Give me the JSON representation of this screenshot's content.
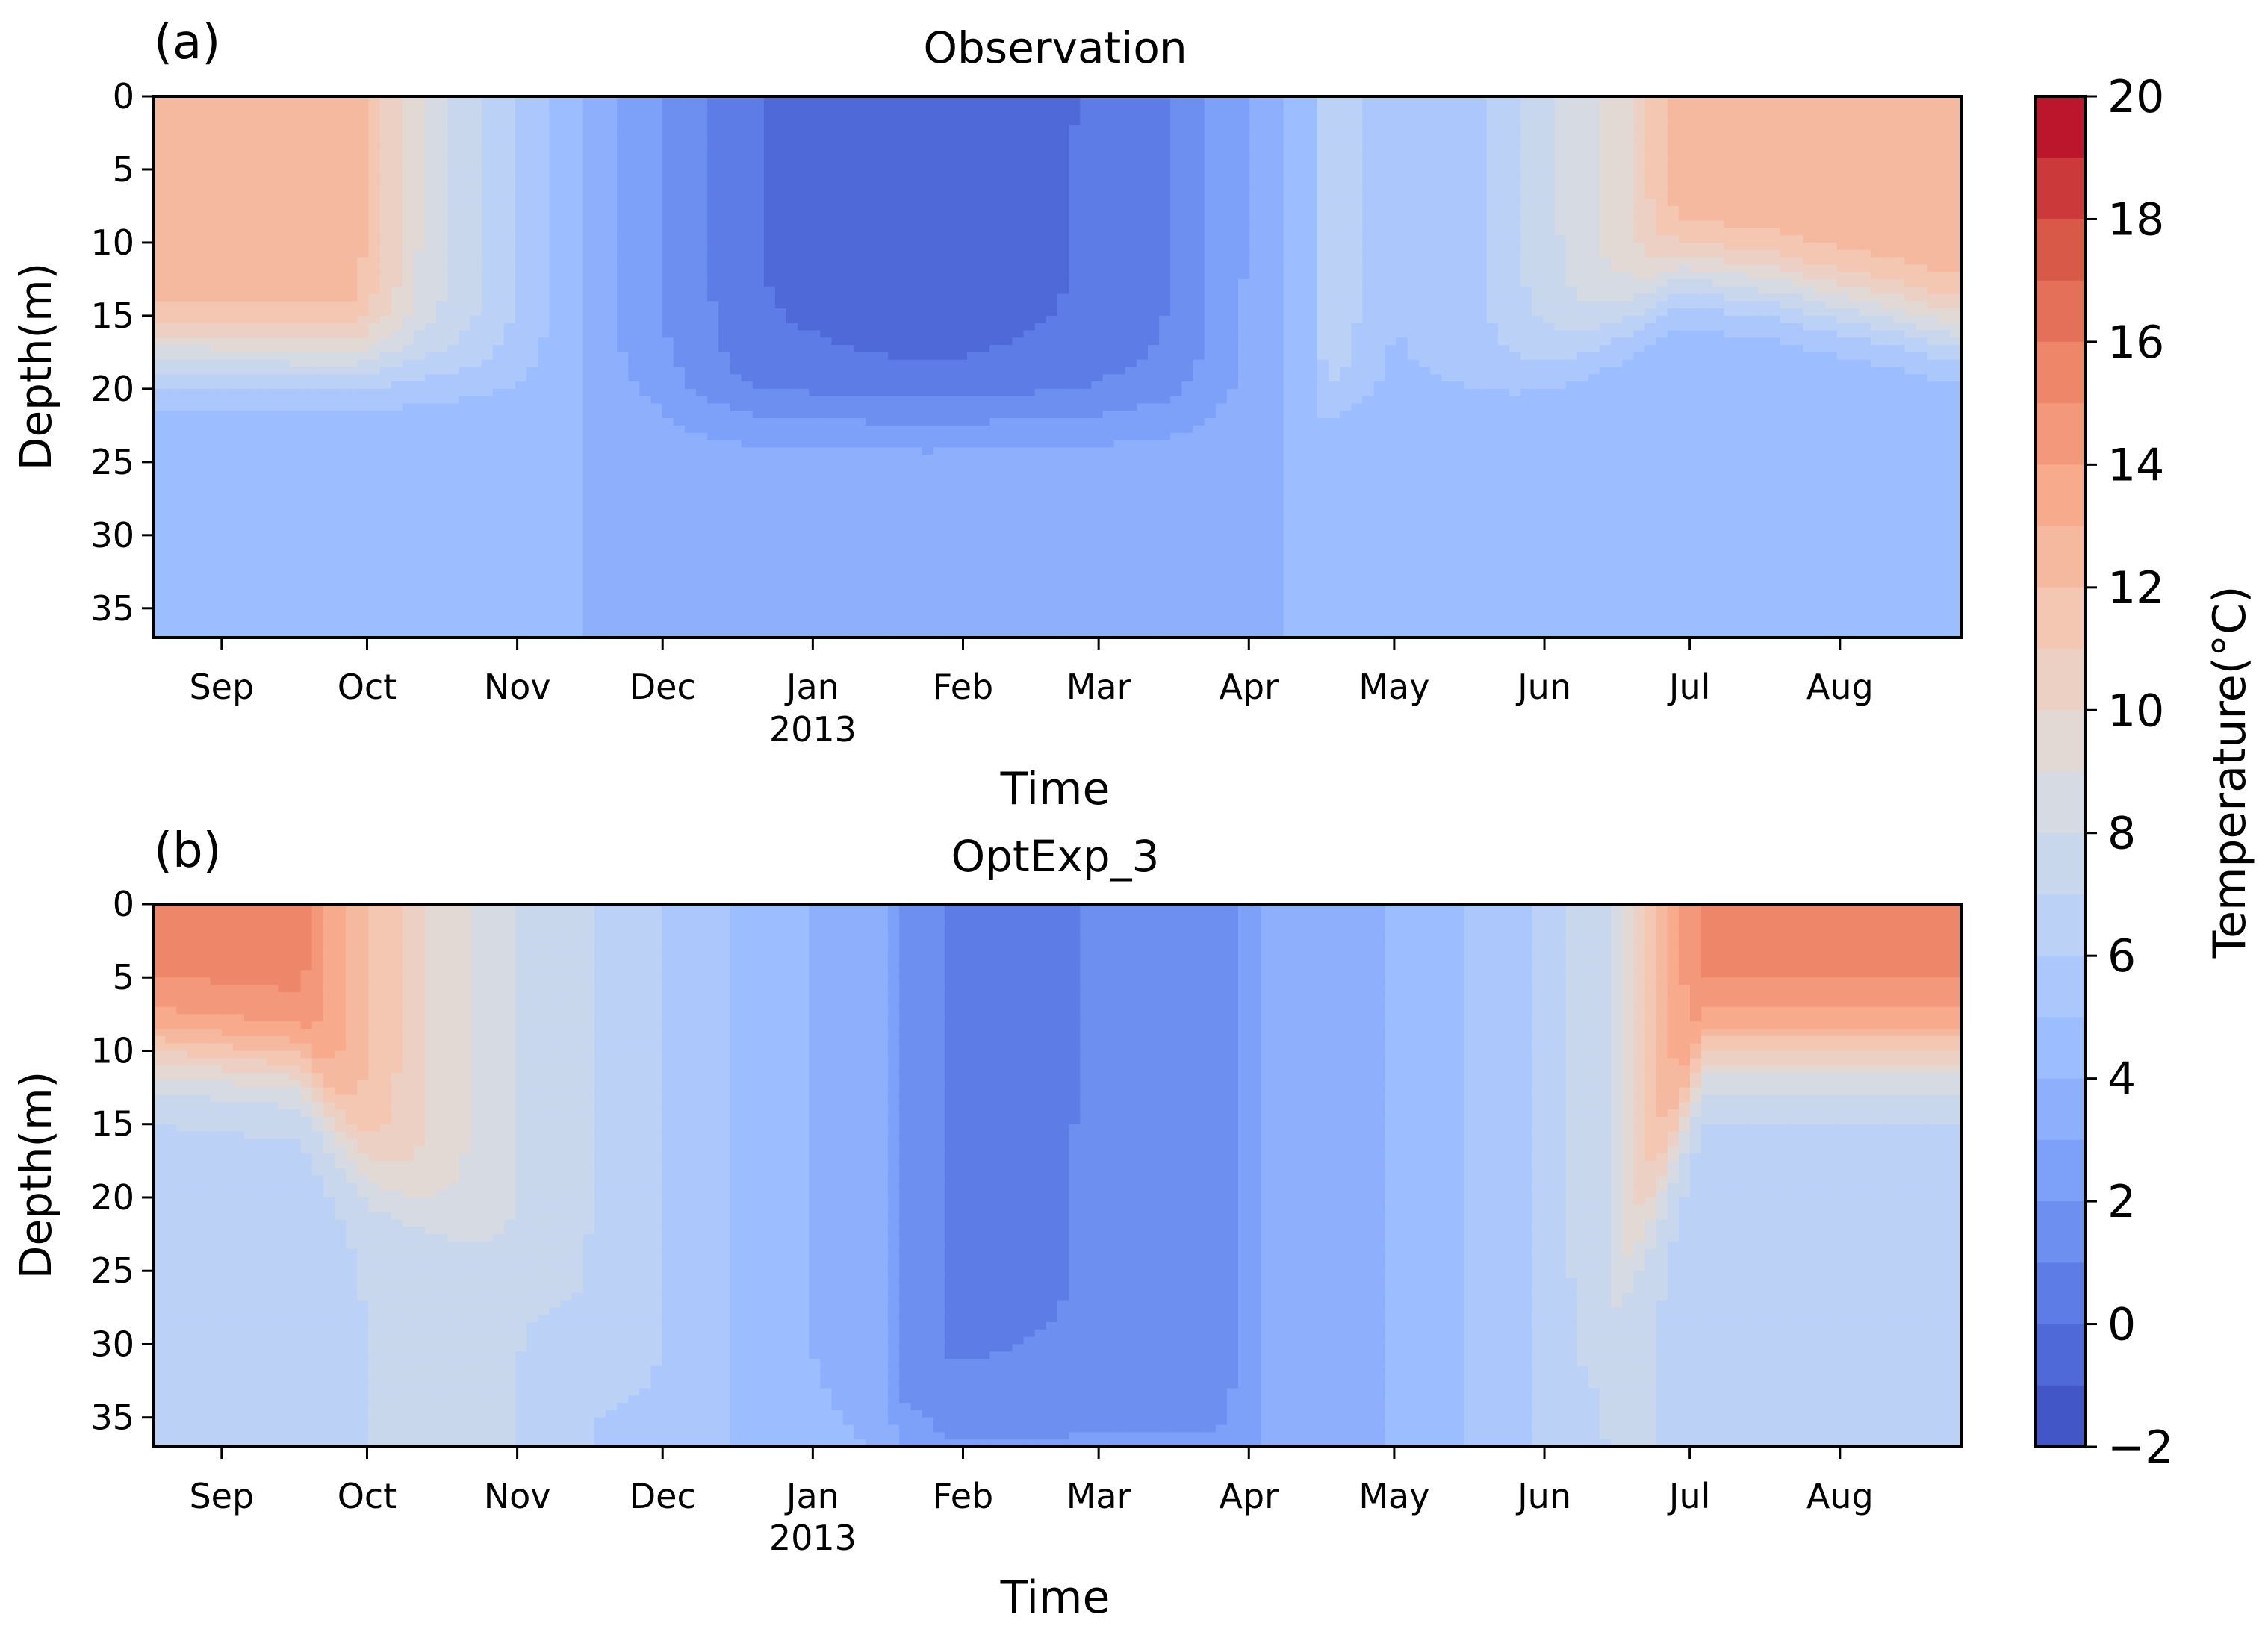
{
  "chart_data": [
    {
      "type": "heatmap",
      "panel_label": "(a)",
      "title": "Observation",
      "xlabel": "Time",
      "ylabel": "Depth(m)",
      "x_ticks": [
        "Sep",
        "Oct",
        "Nov",
        "Dec",
        "Jan",
        "Feb",
        "Mar",
        "Apr",
        "May",
        "Jun",
        "Jul",
        "Aug"
      ],
      "x_tick_day": [
        14,
        44,
        75,
        105,
        136,
        167,
        195,
        226,
        256,
        287,
        317,
        348
      ],
      "x_year_label": "2013",
      "x_year_under": "Jan",
      "xlim_days": [
        0,
        373
      ],
      "y_ticks": [
        0,
        5,
        10,
        15,
        20,
        25,
        30,
        35
      ],
      "ylim": [
        37,
        0
      ],
      "grid": false,
      "keyframes_day": [
        0,
        40,
        55,
        75,
        95,
        110,
        125,
        160,
        190,
        210,
        240,
        242,
        256,
        275,
        290,
        305,
        315,
        335,
        373
      ],
      "surface_temp_c": [
        13,
        13,
        9,
        6,
        3,
        1.5,
        0,
        -0.5,
        0,
        1,
        5,
        7,
        5,
        6,
        8,
        10,
        13,
        13,
        13
      ],
      "thermocline_depth_m": [
        17.5,
        18,
        18.5,
        19.5,
        20.5,
        22,
        22,
        22,
        22,
        22,
        22,
        21,
        21,
        20,
        18,
        15,
        12,
        13,
        16
      ],
      "deep_temp_c": [
        4,
        4,
        4,
        4,
        4,
        4,
        4,
        4,
        4,
        4,
        4,
        4,
        4,
        4,
        4,
        4,
        4,
        4,
        4
      ]
    },
    {
      "type": "heatmap",
      "panel_label": "(b)",
      "title": "OptExp_3",
      "xlabel": "Time",
      "ylabel": "Depth(m)",
      "x_ticks": [
        "Sep",
        "Oct",
        "Nov",
        "Dec",
        "Jan",
        "Feb",
        "Mar",
        "Apr",
        "May",
        "Jun",
        "Jul",
        "Aug"
      ],
      "x_tick_day": [
        14,
        44,
        75,
        105,
        136,
        167,
        195,
        226,
        256,
        287,
        317,
        348
      ],
      "x_year_label": "2013",
      "x_year_under": "Jan",
      "xlim_days": [
        0,
        373
      ],
      "y_ticks": [
        0,
        5,
        10,
        15,
        20,
        25,
        30,
        35
      ],
      "ylim": [
        37,
        0
      ],
      "grid": false,
      "keyframes_day": [
        0,
        30,
        44,
        60,
        75,
        90,
        105,
        120,
        135,
        150,
        155,
        165,
        190,
        220,
        228,
        240,
        255,
        270,
        285,
        300,
        310,
        320,
        340,
        373
      ],
      "surface_temp_c": [
        15.5,
        15.5,
        12,
        9.5,
        8,
        7,
        6,
        5,
        4,
        3.5,
        1.5,
        0.8,
        1,
        1.2,
        3,
        3.5,
        4,
        5,
        6,
        8,
        12,
        15.5,
        15.5,
        15.5
      ],
      "thermocline_depth_m": [
        10,
        11,
        18,
        22,
        25,
        30,
        35,
        35,
        35,
        35,
        35,
        35,
        35,
        35,
        35,
        35,
        35,
        35,
        35,
        30,
        20,
        10,
        10,
        10
      ],
      "deep_temp_c": [
        6.5,
        6.5,
        7,
        7,
        7,
        6,
        5.5,
        5,
        4.5,
        4,
        3,
        2.5,
        2.5,
        2.5,
        3,
        3.5,
        4,
        5,
        6,
        7,
        7,
        6.5,
        6.5,
        6.5
      ]
    }
  ],
  "colorbar": {
    "label": "Temperature(°C)",
    "ticks": [
      "20",
      "18",
      "16",
      "14",
      "12",
      "10",
      "8",
      "6",
      "4",
      "2",
      "0",
      "−2"
    ],
    "tick_values": [
      20,
      18,
      16,
      14,
      12,
      10,
      8,
      6,
      4,
      2,
      0,
      -2
    ],
    "min": -2,
    "max": 20,
    "levels": 22,
    "colormap": "coolwarm",
    "stops": [
      "#3b4cc0",
      "#5977e3",
      "#7b9ff9",
      "#9ebeff",
      "#c0d4f5",
      "#dddcdc",
      "#f2cbb7",
      "#f7ac8e",
      "#ee8468",
      "#d65244",
      "#b40426"
    ]
  }
}
